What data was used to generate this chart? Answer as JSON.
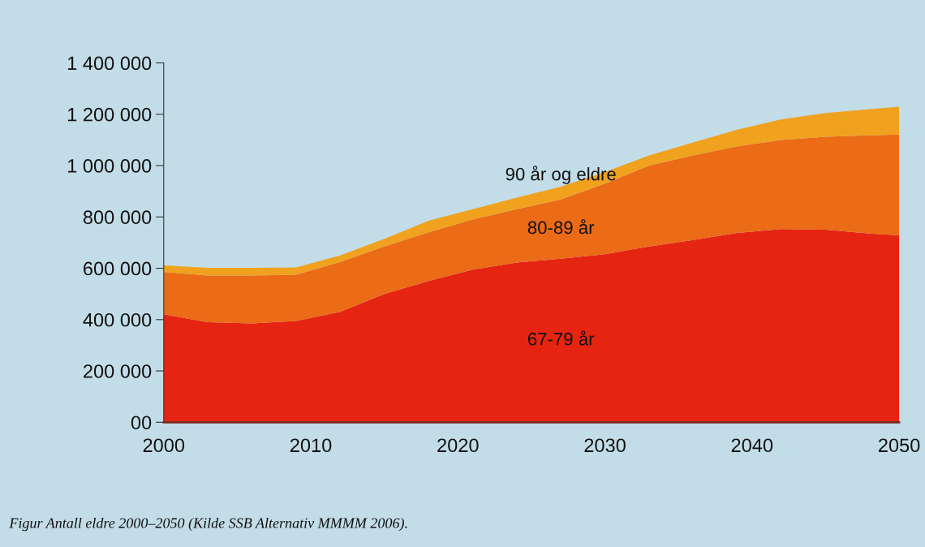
{
  "chart_data": {
    "type": "area",
    "stacked": true,
    "x": [
      2000,
      2003,
      2006,
      2009,
      2012,
      2015,
      2018,
      2021,
      2024,
      2027,
      2030,
      2033,
      2036,
      2039,
      2042,
      2045,
      2048,
      2050
    ],
    "series": [
      {
        "name": "67-79 år",
        "color": "#e62412",
        "values": [
          421000,
          390000,
          385000,
          395000,
          430000,
          500000,
          550000,
          595000,
          622000,
          637000,
          655000,
          685000,
          710000,
          738000,
          753000,
          750000,
          735000,
          728000
        ]
      },
      {
        "name": "80-89 år",
        "color": "#ec6b17",
        "values": [
          165000,
          182000,
          187000,
          180000,
          195000,
          185000,
          190000,
          195000,
          208000,
          231000,
          275000,
          315000,
          330000,
          337000,
          347000,
          362000,
          383000,
          393000
        ]
      },
      {
        "name": "90 år og eldre",
        "color": "#f0a21e",
        "values": [
          25000,
          30000,
          30000,
          28000,
          25000,
          30000,
          45000,
          40000,
          45000,
          50000,
          45000,
          40000,
          50000,
          65000,
          80000,
          93000,
          102000,
          108000
        ]
      }
    ],
    "xlim": [
      2000,
      2050
    ],
    "xticks": [
      2000,
      2010,
      2020,
      2030,
      2040,
      2050
    ],
    "ylim": [
      0,
      1400000
    ],
    "yticks": [
      {
        "value": 0,
        "label": "00"
      },
      {
        "value": 200000,
        "label": "200 000"
      },
      {
        "value": 400000,
        "label": "400 000"
      },
      {
        "value": 600000,
        "label": "600 000"
      },
      {
        "value": 800000,
        "label": "800 000"
      },
      {
        "value": 1000000,
        "label": "1 000 000"
      },
      {
        "value": 1200000,
        "label": "1 200 000"
      },
      {
        "value": 1400000,
        "label": "1 400 000"
      }
    ],
    "grid": false,
    "legend": false,
    "annotations": [
      "Figur Antall eldre 2000–2050 (Kilde SSB Alternativ MMMM 2006)."
    ]
  }
}
